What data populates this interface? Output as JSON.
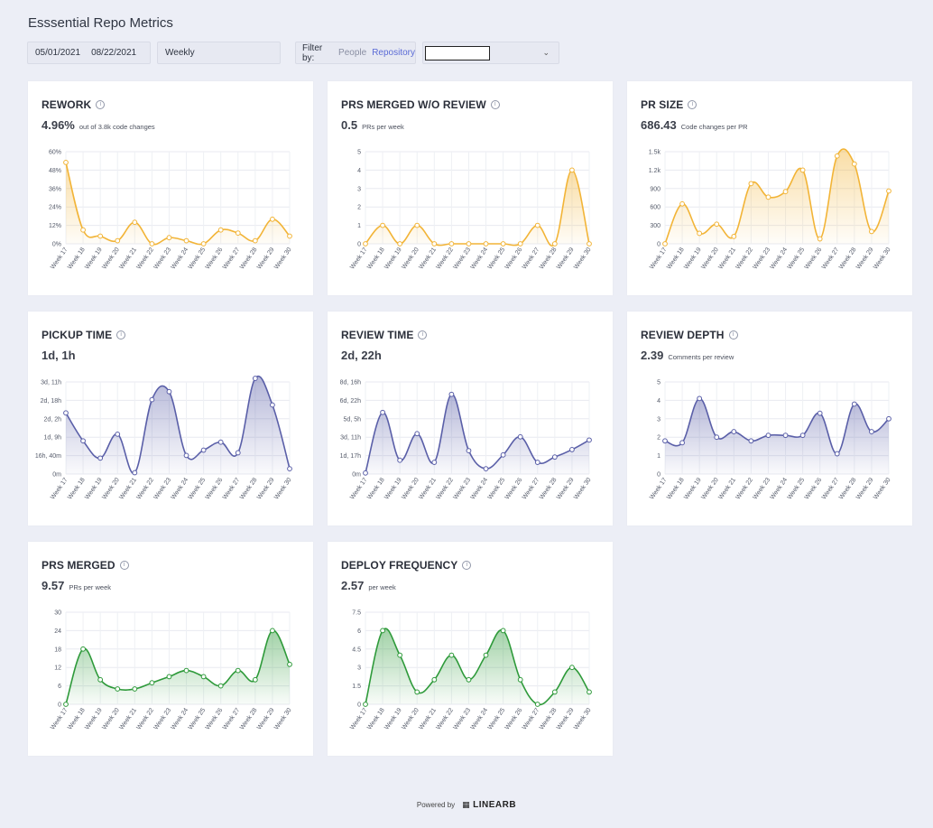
{
  "page": {
    "title": "Esssential Repo Metrics"
  },
  "controls": {
    "start_date": "05/01/2021",
    "end_date": "08/22/2021",
    "period": "Weekly",
    "filter_label": "Filter by:",
    "filter_people": "People",
    "filter_repository": "Repository",
    "repo_value": ""
  },
  "footer": {
    "powered_by": "Powered by",
    "brand": "LINEARB"
  },
  "cards": [
    {
      "title": "REWORK",
      "value": "4.96%",
      "sub": "out of 3.8k code changes"
    },
    {
      "title": "PRS MERGED W/O REVIEW",
      "value": "0.5",
      "sub": "PRs per week"
    },
    {
      "title": "PR SIZE",
      "value": "686.43",
      "sub": "Code changes per PR"
    },
    {
      "title": "PICKUP TIME",
      "value": "1d, 1h",
      "sub": ""
    },
    {
      "title": "REVIEW TIME",
      "value": "2d, 22h",
      "sub": ""
    },
    {
      "title": "REVIEW DEPTH",
      "value": "2.39",
      "sub": "Comments per review"
    },
    {
      "title": "PRS MERGED",
      "value": "9.57",
      "sub": "PRs per week"
    },
    {
      "title": "DEPLOY FREQUENCY",
      "value": "2.57",
      "sub": "per week"
    }
  ],
  "chart_data": [
    {
      "type": "area",
      "color": "#f2b437",
      "x": [
        "Week 17",
        "Week 18",
        "Week 19",
        "Week 20",
        "Week 21",
        "Week 22",
        "Week 23",
        "Week 24",
        "Week 25",
        "Week 26",
        "Week 27",
        "Week 28",
        "Week 29",
        "Week 30"
      ],
      "values": [
        53,
        9,
        5,
        2,
        14,
        0,
        4,
        2,
        0,
        9,
        7,
        2,
        16,
        5
      ],
      "yticks": [
        "0%",
        "12%",
        "24%",
        "36%",
        "48%",
        "60%"
      ],
      "ylim": [
        0,
        60
      ]
    },
    {
      "type": "area",
      "color": "#f2b437",
      "x": [
        "Week 17",
        "Week 18",
        "Week 19",
        "Week 20",
        "Week 21",
        "Week 22",
        "Week 23",
        "Week 24",
        "Week 25",
        "Week 26",
        "Week 27",
        "Week 28",
        "Week 29",
        "Week 30"
      ],
      "values": [
        0,
        1,
        0,
        1,
        0,
        0,
        0,
        0,
        0,
        0,
        1,
        0,
        4,
        0
      ],
      "yticks": [
        "0",
        "1",
        "2",
        "3",
        "4",
        "5"
      ],
      "ylim": [
        0,
        5
      ]
    },
    {
      "type": "area",
      "color": "#f2b437",
      "x": [
        "Week 17",
        "Week 18",
        "Week 19",
        "Week 20",
        "Week 21",
        "Week 22",
        "Week 23",
        "Week 24",
        "Week 25",
        "Week 26",
        "Week 27",
        "Week 28",
        "Week 29",
        "Week 30"
      ],
      "values": [
        0,
        650,
        170,
        320,
        120,
        980,
        760,
        850,
        1200,
        80,
        1430,
        1300,
        200,
        860
      ],
      "yticks": [
        "0",
        "300",
        "600",
        "900",
        "1.2k",
        "1.5k"
      ],
      "ylim": [
        0,
        1500
      ]
    },
    {
      "type": "area",
      "color": "#5a5fa8",
      "x": [
        "Week 17",
        "Week 18",
        "Week 19",
        "Week 20",
        "Week 21",
        "Week 22",
        "Week 23",
        "Week 24",
        "Week 25",
        "Week 26",
        "Week 27",
        "Week 28",
        "Week 29",
        "Week 30"
      ],
      "values": [
        2.3,
        1.25,
        0.6,
        1.5,
        0.05,
        2.8,
        3.1,
        0.7,
        0.9,
        1.2,
        0.8,
        3.6,
        2.6,
        0.2
      ],
      "yticks": [
        "0m",
        "16h, 40m",
        "1d, 9h",
        "2d, 2h",
        "2d, 18h",
        "3d, 11h"
      ],
      "ylim": [
        0,
        3.4666
      ]
    },
    {
      "type": "area",
      "color": "#5a5fa8",
      "x": [
        "Week 17",
        "Week 18",
        "Week 19",
        "Week 20",
        "Week 21",
        "Week 22",
        "Week 23",
        "Week 24",
        "Week 25",
        "Week 26",
        "Week 27",
        "Week 28",
        "Week 29",
        "Week 30"
      ],
      "values": [
        0.1,
        5.8,
        1.3,
        3.8,
        1.1,
        7.5,
        2.2,
        0.5,
        1.8,
        3.5,
        1.1,
        1.6,
        2.3,
        3.2
      ],
      "yticks": [
        "0m",
        "1d, 17h",
        "3d, 11h",
        "5d, 5h",
        "6d, 22h",
        "8d, 16h"
      ],
      "ylim": [
        0,
        8.6666
      ]
    },
    {
      "type": "area",
      "color": "#5a5fa8",
      "x": [
        "Week 17",
        "Week 18",
        "Week 19",
        "Week 20",
        "Week 21",
        "Week 22",
        "Week 23",
        "Week 24",
        "Week 25",
        "Week 26",
        "Week 27",
        "Week 28",
        "Week 29",
        "Week 30"
      ],
      "values": [
        1.8,
        1.7,
        4.1,
        2.0,
        2.3,
        1.8,
        2.1,
        2.1,
        2.1,
        3.3,
        1.1,
        3.8,
        2.3,
        3.0
      ],
      "yticks": [
        "0",
        "1",
        "2",
        "3",
        "4",
        "5"
      ],
      "ylim": [
        0,
        5
      ]
    },
    {
      "type": "area",
      "color": "#2e9a3a",
      "x": [
        "Week 17",
        "Week 18",
        "Week 19",
        "Week 20",
        "Week 21",
        "Week 22",
        "Week 23",
        "Week 24",
        "Week 25",
        "Week 26",
        "Week 27",
        "Week 28",
        "Week 29",
        "Week 30"
      ],
      "values": [
        0,
        18,
        8,
        5,
        5,
        7,
        9,
        11,
        9,
        6,
        11,
        8,
        24,
        13
      ],
      "yticks": [
        "0",
        "6",
        "12",
        "18",
        "24",
        "30"
      ],
      "ylim": [
        0,
        30
      ]
    },
    {
      "type": "area",
      "color": "#2e9a3a",
      "x": [
        "Week 17",
        "Week 18",
        "Week 19",
        "Week 20",
        "Week 21",
        "Week 22",
        "Week 23",
        "Week 24",
        "Week 25",
        "Week 26",
        "Week 27",
        "Week 28",
        "Week 29",
        "Week 30"
      ],
      "values": [
        0,
        6,
        4,
        1,
        2,
        4,
        2,
        4,
        6,
        2,
        0,
        1,
        3,
        1
      ],
      "yticks": [
        "0",
        "1.5",
        "3",
        "4.5",
        "6",
        "7.5"
      ],
      "ylim": [
        0,
        7.5
      ]
    }
  ]
}
